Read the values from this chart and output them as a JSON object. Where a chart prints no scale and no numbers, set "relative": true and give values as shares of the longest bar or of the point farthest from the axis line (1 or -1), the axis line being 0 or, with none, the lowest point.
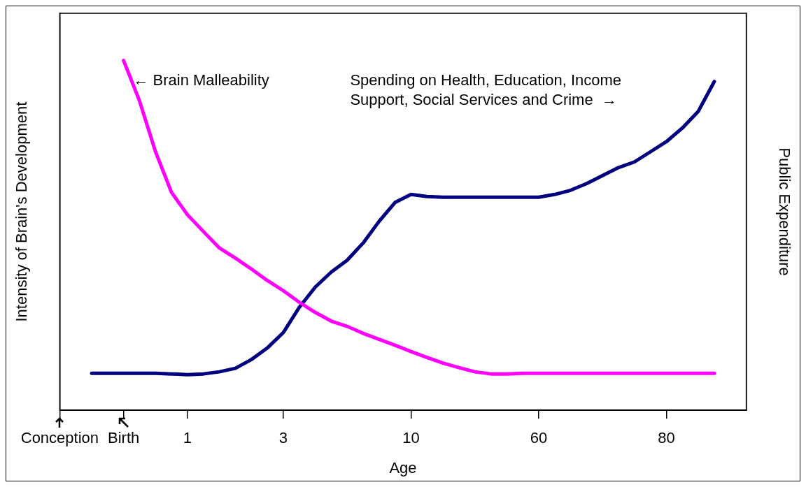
{
  "chart_data": {
    "type": "line",
    "relative": true,
    "xlabel": "Age",
    "ylabel": "Intensity of Brain's Development",
    "y2label": "Public Expenditure",
    "categories": [
      "Conception",
      null,
      null,
      null,
      "Birth",
      null,
      null,
      null,
      "1",
      null,
      null,
      null,
      null,
      null,
      "3",
      null,
      null,
      null,
      null,
      null,
      null,
      null,
      "10",
      null,
      null,
      null,
      null,
      null,
      null,
      null,
      "60",
      null,
      null,
      null,
      null,
      null,
      null,
      null,
      "80",
      null,
      null,
      null,
      null,
      null
    ],
    "series": [
      {
        "color": "#ff00ff",
        "values": [
          null,
          null,
          null,
          null,
          1.0,
          0.884,
          0.739,
          0.623,
          0.559,
          0.511,
          0.464,
          0.435,
          0.404,
          0.371,
          0.342,
          0.309,
          0.28,
          0.255,
          0.24,
          0.22,
          0.203,
          0.186,
          0.168,
          0.151,
          0.135,
          0.122,
          0.11,
          0.104,
          0.104,
          0.106,
          0.106,
          0.106,
          0.106,
          0.106,
          0.106,
          0.106,
          0.106,
          0.106,
          0.106,
          0.106,
          0.106,
          0.106,
          null,
          null
        ]
      },
      {
        "color": "#000080",
        "values": [
          null,
          null,
          0.106,
          0.106,
          0.106,
          0.106,
          0.106,
          0.104,
          0.102,
          0.104,
          0.11,
          0.12,
          0.145,
          0.178,
          0.222,
          0.294,
          0.352,
          0.395,
          0.429,
          0.478,
          0.54,
          0.594,
          0.617,
          0.611,
          0.609,
          0.609,
          0.609,
          0.609,
          0.609,
          0.609,
          0.609,
          0.617,
          0.629,
          0.648,
          0.671,
          0.694,
          0.71,
          0.739,
          0.768,
          0.807,
          0.855,
          0.94,
          null,
          null
        ]
      }
    ],
    "annotations": [
      "← Brain Malleability",
      "Spending on Health, Education, Income\nSupport, Social Services and Crime  →"
    ],
    "legend": false,
    "marker": "none",
    "line_style": "solid"
  }
}
